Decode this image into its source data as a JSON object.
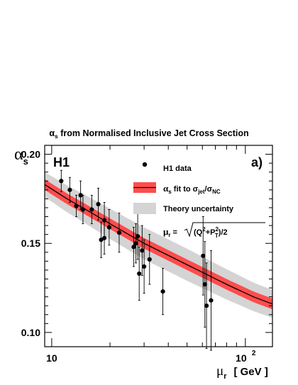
{
  "chart_data": {
    "type": "scatter",
    "title": "α_s from Normalised Inclusive Jet Cross Section",
    "title_parts": {
      "alpha": "α",
      "sub": "s",
      "rest": " from Normalised Inclusive Jet Cross Section"
    },
    "experiment_label": "H1",
    "panel_label": "a)",
    "ylabel": {
      "symbol": "α",
      "sub": "s"
    },
    "xlabel": {
      "symbol": "μ",
      "sub": "r",
      "unit": "[ GeV ]"
    },
    "x_scale": "log",
    "xlim": [
      9.2,
      138
    ],
    "ylim": [
      0.092,
      0.205
    ],
    "x_ticks": [
      {
        "value": 10,
        "label": "10"
      },
      {
        "value": 100,
        "label": "10",
        "sup": "2"
      }
    ],
    "y_ticks": [
      {
        "value": 0.1,
        "label": "0.10"
      },
      {
        "value": 0.15,
        "label": "0.15"
      },
      {
        "value": 0.2,
        "label": "0.20"
      }
    ],
    "legend": {
      "placement": "top-right",
      "entries": [
        {
          "marker": "point",
          "text": "H1 data"
        },
        {
          "marker": "band",
          "parts": [
            "α",
            "s",
            " fit to σ",
            "jet",
            "/σ",
            "NC"
          ]
        },
        {
          "marker": "grey-band",
          "text": "Theory uncertainty"
        }
      ],
      "formula": {
        "mu": "μ",
        "r": "r",
        "eq": " =",
        "q2": "(Q",
        "two": "2",
        "plus": "+P",
        "sup2": "2",
        "T": "T",
        "close": ")/2"
      }
    },
    "series": [
      {
        "name": "H1 data",
        "points": [
          {
            "x": 11.2,
            "y": 0.185,
            "err": 0.006
          },
          {
            "x": 12.4,
            "y": 0.18,
            "err": 0.007
          },
          {
            "x": 13.4,
            "y": 0.171,
            "err": 0.006
          },
          {
            "x": 14.1,
            "y": 0.177,
            "err": 0.008
          },
          {
            "x": 14.5,
            "y": 0.169,
            "err": 0.008
          },
          {
            "x": 16.1,
            "y": 0.169,
            "err": 0.008
          },
          {
            "x": 17.4,
            "y": 0.172,
            "err": 0.009
          },
          {
            "x": 18.0,
            "y": 0.152,
            "err": 0.01
          },
          {
            "x": 18.7,
            "y": 0.163,
            "err": 0.01
          },
          {
            "x": 18.7,
            "y": 0.153,
            "err": 0.009
          },
          {
            "x": 19.8,
            "y": 0.159,
            "err": 0.01
          },
          {
            "x": 22.3,
            "y": 0.156,
            "err": 0.011
          },
          {
            "x": 26.5,
            "y": 0.148,
            "err": 0.011
          },
          {
            "x": 27.2,
            "y": 0.15,
            "err": 0.011
          },
          {
            "x": 27.8,
            "y": 0.154,
            "err": 0.013
          },
          {
            "x": 28.3,
            "y": 0.133,
            "err": 0.015
          },
          {
            "x": 29.3,
            "y": 0.146,
            "err": 0.014
          },
          {
            "x": 30.0,
            "y": 0.137,
            "err": 0.015
          },
          {
            "x": 32.0,
            "y": 0.141,
            "err": 0.014
          },
          {
            "x": 37.5,
            "y": 0.123,
            "err": 0.013
          },
          {
            "x": 60.5,
            "y": 0.143,
            "err": 0.022
          },
          {
            "x": 61.8,
            "y": 0.127,
            "err": 0.024
          },
          {
            "x": 63.0,
            "y": 0.115,
            "err": 0.024
          },
          {
            "x": 66.5,
            "y": 0.118,
            "err": 0.028
          }
        ]
      },
      {
        "name": "α_s fit",
        "curve": {
          "x": [
            9.2,
            12,
            15,
            20,
            30,
            50,
            80,
            110,
            138
          ],
          "y": [
            0.183,
            0.175,
            0.169,
            0.161,
            0.15,
            0.138,
            0.127,
            0.12,
            0.116
          ]
        },
        "band_halfwidth": 0.003,
        "color": "#ff4d4d"
      },
      {
        "name": "Theory uncertainty",
        "curve": {
          "x": [
            9.2,
            12,
            15,
            20,
            30,
            50,
            80,
            110,
            138
          ],
          "y": [
            0.183,
            0.175,
            0.169,
            0.161,
            0.15,
            0.138,
            0.127,
            0.12,
            0.116
          ]
        },
        "band_halfwidth": [
          0.007,
          0.0075,
          0.008,
          0.0085,
          0.009,
          0.009,
          0.0085,
          0.008,
          0.0078
        ],
        "color": "#d4d4d4"
      }
    ],
    "colors": {
      "fit_line": "#000000",
      "fit_band": "#ff4d4d",
      "theory_band": "#d4d4d4",
      "points": "#000000"
    }
  }
}
